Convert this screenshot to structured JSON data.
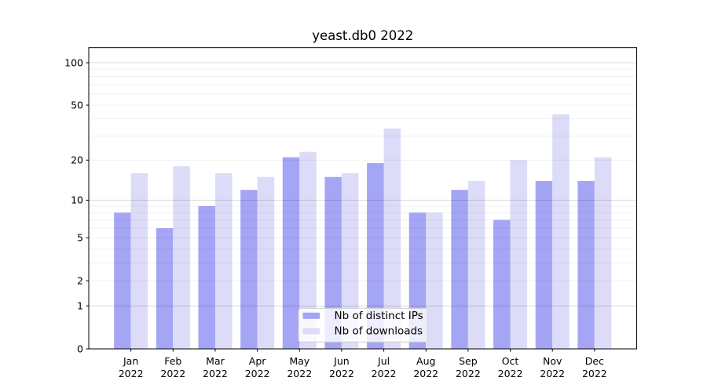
{
  "figure": {
    "background": "#ffffff"
  },
  "colors": {
    "ips_bar": "#a5a5f6",
    "downloads_bar": "#dcdcf8",
    "axis": "#000000",
    "grid_major": "rgba(0,0,0,0.14)",
    "grid_minor": "rgba(0,0,0,0.06)",
    "legend_fill": "rgba(255,255,255,0.8)",
    "legend_border": "#cccccc"
  },
  "chart_data": {
    "type": "bar",
    "title": "yeast.db0 2022",
    "categories": [
      "Jan 2022",
      "Feb 2022",
      "Mar 2022",
      "Apr 2022",
      "May 2022",
      "Jun 2022",
      "Jul 2022",
      "Aug 2022",
      "Sep 2022",
      "Oct 2022",
      "Nov 2022",
      "Dec 2022"
    ],
    "x_tick_line1": [
      "Jan",
      "Feb",
      "Mar",
      "Apr",
      "May",
      "Jun",
      "Jul",
      "Aug",
      "Sep",
      "Oct",
      "Nov",
      "Dec"
    ],
    "x_tick_line2": [
      "2022",
      "2022",
      "2022",
      "2022",
      "2022",
      "2022",
      "2022",
      "2022",
      "2022",
      "2022",
      "2022",
      "2022"
    ],
    "series": [
      {
        "name": "Nb of distinct IPs",
        "color": "#a5a5f6",
        "values": [
          8,
          6,
          9,
          12,
          21,
          15,
          19,
          8,
          12,
          7,
          14,
          14
        ]
      },
      {
        "name": "Nb of downloads",
        "color": "#dcdcf8",
        "values": [
          16,
          18,
          16,
          15,
          23,
          16,
          34,
          8,
          14,
          20,
          43,
          21
        ]
      }
    ],
    "xlabel": "",
    "ylabel": "",
    "yscale": "log1p",
    "ylim": [
      0,
      127
    ],
    "yticks": [
      0,
      1,
      2,
      5,
      10,
      20,
      50,
      100
    ],
    "ytick_labels": [
      "0",
      "1",
      "2",
      "5",
      "10",
      "20",
      "50",
      "100"
    ],
    "yticks_minor": [
      2,
      3,
      4,
      5,
      6,
      7,
      8,
      9,
      20,
      30,
      40,
      50,
      60,
      70,
      80,
      90
    ],
    "yticks_major_grid": [
      1,
      10,
      100
    ],
    "grid": "both",
    "legend_position": "lower center"
  },
  "legend": {
    "items": [
      {
        "label": "Nb of distinct IPs",
        "color": "#a5a5f6"
      },
      {
        "label": "Nb of downloads",
        "color": "#dcdcf8"
      }
    ]
  }
}
